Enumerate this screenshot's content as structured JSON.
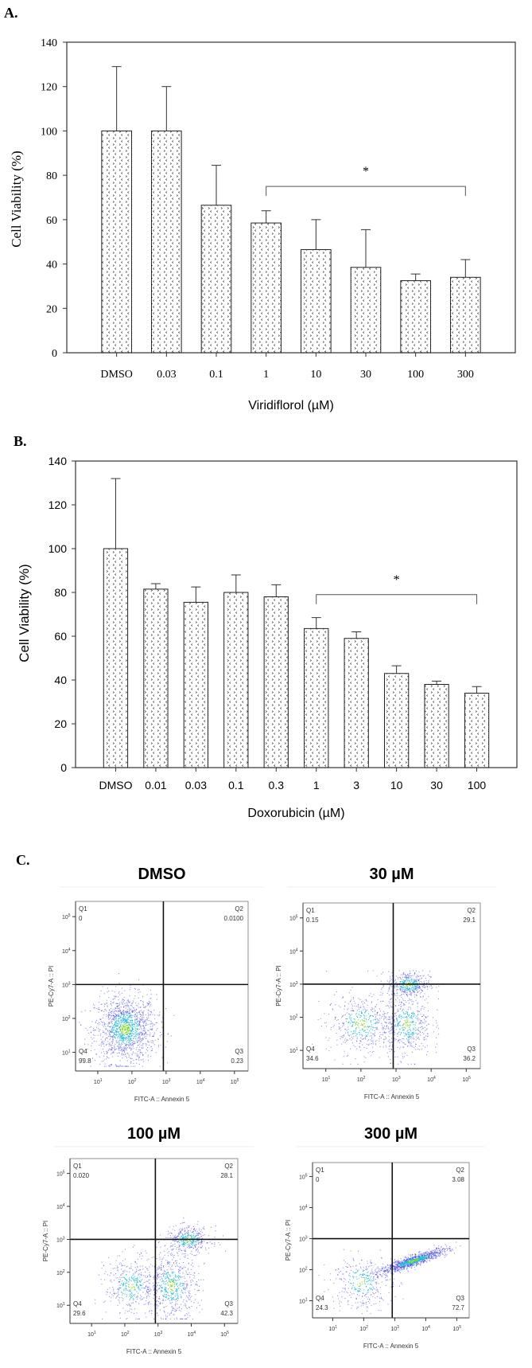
{
  "panel_labels": {
    "a": "A.",
    "b": "B.",
    "c": "C."
  },
  "chart_data": [
    {
      "type": "bar",
      "panel": "A.",
      "title": "",
      "categories": [
        "DMSO",
        "0.03",
        "0.1",
        "1",
        "10",
        "30",
        "100",
        "300"
      ],
      "values": [
        100,
        100,
        66.5,
        58.5,
        46.5,
        38.5,
        32.5,
        34
      ],
      "error_upper": [
        129,
        120,
        84.5,
        64,
        60,
        55.5,
        35.5,
        42
      ],
      "xlabel": "Viridiflorol (µM)",
      "ylabel": "Cell Viability (%)",
      "ylim": [
        0,
        140
      ],
      "yticks": [
        "0",
        "20",
        "40",
        "60",
        "80",
        "100",
        "120",
        "140"
      ],
      "significance": {
        "from": "1",
        "to": "300",
        "label": "*",
        "level": 75
      },
      "grid": false
    },
    {
      "type": "bar",
      "panel": "B.",
      "title": "",
      "categories": [
        "DMSO",
        "0.01",
        "0.03",
        "0.1",
        "0.3",
        "1",
        "3",
        "10",
        "30",
        "100"
      ],
      "values": [
        100,
        81.5,
        75.5,
        80,
        78,
        63.5,
        59,
        43,
        38,
        34
      ],
      "error_upper": [
        132,
        84,
        82.5,
        88,
        83.5,
        68.5,
        62,
        46.5,
        39.5,
        37
      ],
      "xlabel": "Doxorubicin (µM)",
      "ylabel": "Cell Viability (%)",
      "ylim": [
        0,
        140
      ],
      "yticks": [
        "0",
        "20",
        "40",
        "60",
        "80",
        "100",
        "120",
        "140"
      ],
      "significance": {
        "from": "1",
        "to": "100",
        "label": "*",
        "level": 79
      },
      "grid": false
    },
    {
      "type": "scatter",
      "panel": "C.",
      "xlabel": "FITC-A :: Annexin 5",
      "ylabel": "PE-Cy7-A :: PI",
      "tick_base": "10",
      "tick_exponents": [
        "1",
        "2",
        "3",
        "4",
        "5"
      ],
      "plots": [
        {
          "title": "DMSO",
          "quadrants": {
            "Q1": "0",
            "Q2": "0.0100",
            "Q3": "0.23",
            "Q4": "99.8"
          }
        },
        {
          "title": "30 µM",
          "quadrants": {
            "Q1": "0.15",
            "Q2": "29.1",
            "Q3": "36.2",
            "Q4": "34.6"
          }
        },
        {
          "title": "100 µM",
          "quadrants": {
            "Q1": "0.020",
            "Q2": "28.1",
            "Q3": "42.3",
            "Q4": "29.6"
          }
        },
        {
          "title": "300 µM",
          "quadrants": {
            "Q1": "0",
            "Q2": "3.08",
            "Q3": "72.7",
            "Q4": "24.3"
          }
        }
      ],
      "quadrant_names": [
        "Q1",
        "Q2",
        "Q3",
        "Q4"
      ]
    }
  ],
  "colors": {
    "axis": "#000000",
    "dots_low": "#3a3ad8",
    "dots_mid": "#22b8d8",
    "dots_high": "#7ed321"
  }
}
